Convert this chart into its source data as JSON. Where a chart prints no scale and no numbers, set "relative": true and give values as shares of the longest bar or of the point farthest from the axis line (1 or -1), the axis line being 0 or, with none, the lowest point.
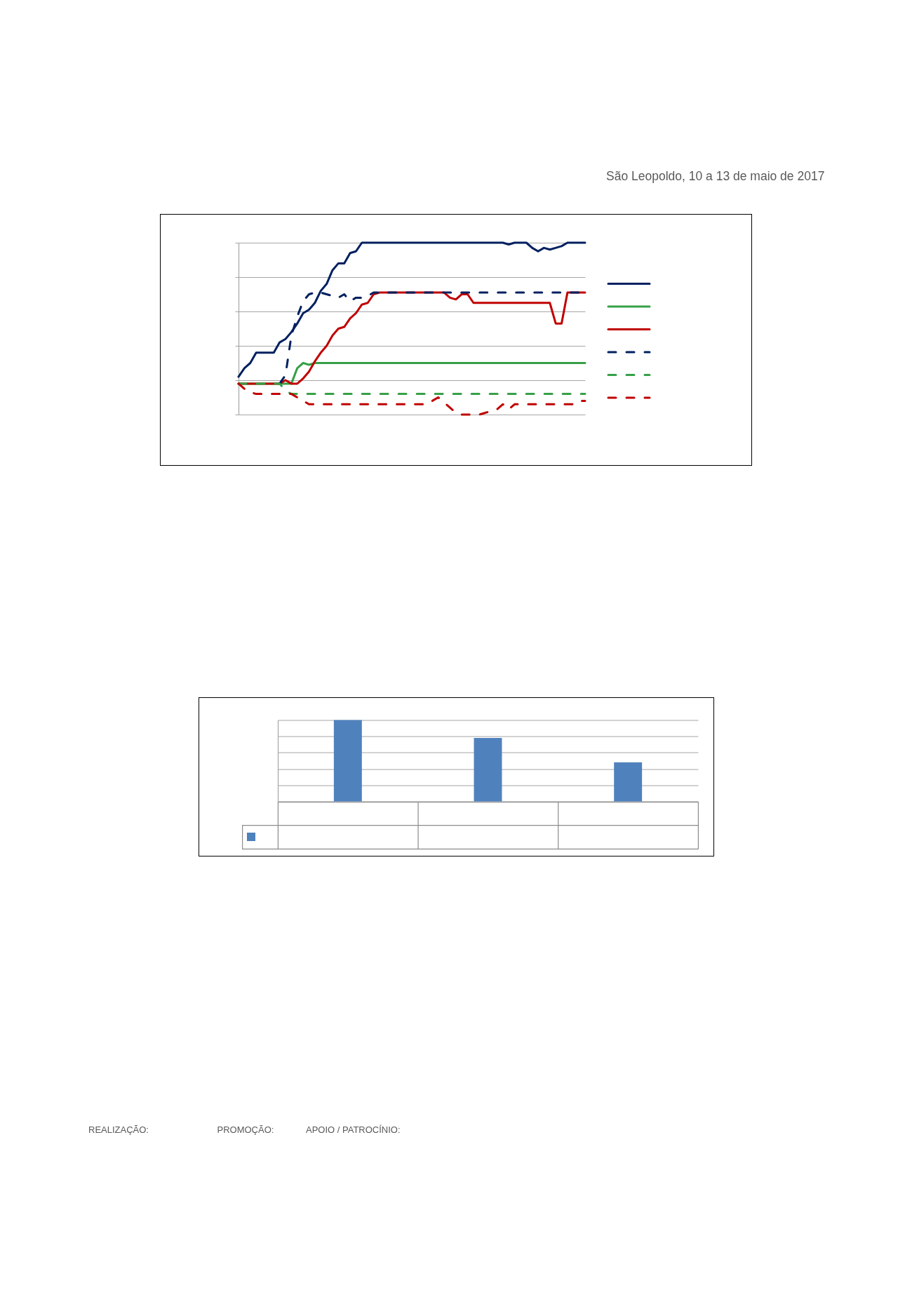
{
  "chart_data": [
    {
      "type": "line",
      "relative": true,
      "grid": "y",
      "categories": [
        null,
        null,
        null,
        null,
        null,
        null,
        null,
        null,
        null,
        null,
        null,
        null,
        null,
        null,
        null,
        null,
        null,
        null,
        null,
        null,
        null,
        null,
        null,
        null,
        null,
        null,
        null,
        null,
        null,
        null,
        null,
        null,
        null,
        null,
        null,
        null,
        null,
        null,
        null,
        null,
        null,
        null,
        null,
        null,
        null,
        null,
        null,
        null,
        null,
        null,
        null,
        null,
        null,
        null,
        null,
        null,
        null,
        null,
        null,
        null
      ],
      "series": [
        {
          "color": "#002060",
          "line_style": "solid",
          "values": [
            0.22,
            0.27,
            0.3,
            0.36,
            0.36,
            0.36,
            0.36,
            0.42,
            0.44,
            0.48,
            0.53,
            0.59,
            0.61,
            0.65,
            0.72,
            0.76,
            0.84,
            0.88,
            0.88,
            0.94,
            0.95,
            1,
            1,
            1,
            1,
            1,
            1,
            1,
            1,
            1,
            1,
            1,
            1,
            1,
            1,
            1,
            1,
            1,
            1,
            1,
            1,
            1,
            1,
            1,
            1,
            1,
            0.99,
            1,
            1,
            1,
            0.97,
            0.95,
            0.97,
            0.96,
            0.97,
            0.98,
            1,
            1,
            1,
            1
          ]
        },
        {
          "color": "#36a047",
          "line_style": "solid",
          "values": [
            0.18,
            0.18,
            0.18,
            0.18,
            0.18,
            0.18,
            0.18,
            0.18,
            0.18,
            0.18,
            0.27,
            0.3,
            0.29,
            0.3,
            0.3,
            0.3,
            0.3,
            0.3,
            0.3,
            0.3,
            0.3,
            0.3,
            0.3,
            0.3,
            0.3,
            0.3,
            0.3,
            0.3,
            0.3,
            0.3,
            0.3,
            0.3,
            0.3,
            0.3,
            0.3,
            0.3,
            0.3,
            0.3,
            0.3,
            0.3,
            0.3,
            0.3,
            0.3,
            0.3,
            0.3,
            0.3,
            0.3,
            0.3,
            0.3,
            0.3,
            0.3,
            0.3,
            0.3,
            0.3,
            0.3,
            0.3,
            0.3,
            0.3,
            0.3,
            0.3
          ]
        },
        {
          "color": "#c00000",
          "line_style": "solid",
          "values": [
            0.18,
            0.18,
            0.18,
            0.18,
            0.18,
            0.18,
            0.18,
            0.18,
            0.2,
            0.18,
            0.18,
            0.21,
            0.25,
            0.31,
            0.36,
            0.4,
            0.46,
            0.5,
            0.51,
            0.56,
            0.59,
            0.64,
            0.65,
            0.7,
            0.71,
            0.71,
            0.71,
            0.71,
            0.71,
            0.71,
            0.71,
            0.71,
            0.71,
            0.71,
            0.71,
            0.71,
            0.68,
            0.67,
            0.7,
            0.7,
            0.65,
            0.65,
            0.65,
            0.65,
            0.65,
            0.65,
            0.65,
            0.65,
            0.65,
            0.65,
            0.65,
            0.65,
            0.65,
            0.65,
            0.53,
            0.53,
            0.71,
            0.71,
            0.71,
            0.71
          ]
        },
        {
          "color": "#002060",
          "line_style": "dashed",
          "values": [
            null,
            null,
            null,
            null,
            null,
            null,
            null,
            0.18,
            0.23,
            0.46,
            0.57,
            0.66,
            0.7,
            0.71,
            0.71,
            0.7,
            0.69,
            0.68,
            0.7,
            0.66,
            0.68,
            0.68,
            0.69,
            0.71,
            0.71,
            0.71,
            0.71,
            0.71,
            0.71,
            0.71,
            0.71,
            0.71,
            0.71,
            0.71,
            0.71,
            0.71,
            0.71,
            0.71,
            0.71,
            0.71,
            0.71,
            0.71,
            0.71,
            0.71,
            0.71,
            0.71,
            0.71,
            0.71,
            0.71,
            0.71,
            0.71,
            0.71,
            0.71,
            0.71,
            0.71,
            0.71,
            0.71,
            0.71,
            0.71,
            0.71
          ]
        },
        {
          "color": "#36a047",
          "line_style": "dashed",
          "values": [
            0.18,
            0.18,
            0.18,
            0.18,
            0.18,
            0.18,
            0.18,
            0.18,
            0.14,
            0.12,
            0.12,
            0.12,
            0.12,
            0.12,
            0.12,
            0.12,
            0.12,
            0.12,
            0.12,
            0.12,
            0.12,
            0.12,
            0.12,
            0.12,
            0.12,
            0.12,
            0.12,
            0.12,
            0.12,
            0.12,
            0.12,
            0.12,
            0.12,
            0.12,
            0.12,
            0.12,
            0.12,
            0.12,
            0.12,
            0.12,
            0.12,
            0.12,
            0.12,
            0.12,
            0.12,
            0.12,
            0.12,
            0.12,
            0.12,
            0.12,
            0.12,
            0.12,
            0.12,
            0.12,
            0.12,
            0.12,
            0.12,
            0.12,
            0.12,
            0.12
          ]
        },
        {
          "color": "#c00000",
          "line_style": "dashed",
          "values": [
            0.18,
            0.15,
            0.13,
            0.12,
            0.12,
            0.12,
            0.12,
            0.12,
            0.12,
            0.12,
            0.1,
            0.08,
            0.06,
            0.06,
            0.06,
            0.06,
            0.06,
            0.06,
            0.06,
            0.06,
            0.06,
            0.06,
            0.06,
            0.06,
            0.06,
            0.06,
            0.06,
            0.06,
            0.06,
            0.06,
            0.06,
            0.06,
            0.06,
            0.08,
            0.1,
            0.07,
            0.04,
            0.01,
            0,
            0,
            0,
            0,
            0.01,
            0.02,
            0.03,
            0.06,
            0.03,
            0.06,
            0.06,
            0.06,
            0.06,
            0.06,
            0.06,
            0.06,
            0.06,
            0.06,
            0.06,
            0.06,
            0.08,
            0.08
          ]
        }
      ],
      "annotations": [
        "São Leopoldo, 10 a 13 de maio de 2017"
      ]
    },
    {
      "type": "bar",
      "relative": true,
      "grid": "y",
      "categories": [
        null,
        null,
        null
      ],
      "values": [
        1,
        0.78,
        0.48
      ],
      "color": "#4f81bd",
      "annotations": [
        "REALIZAÇÃO:",
        "PROMOÇÃO:",
        "APOIO / PATROCÍNIO:"
      ]
    }
  ]
}
